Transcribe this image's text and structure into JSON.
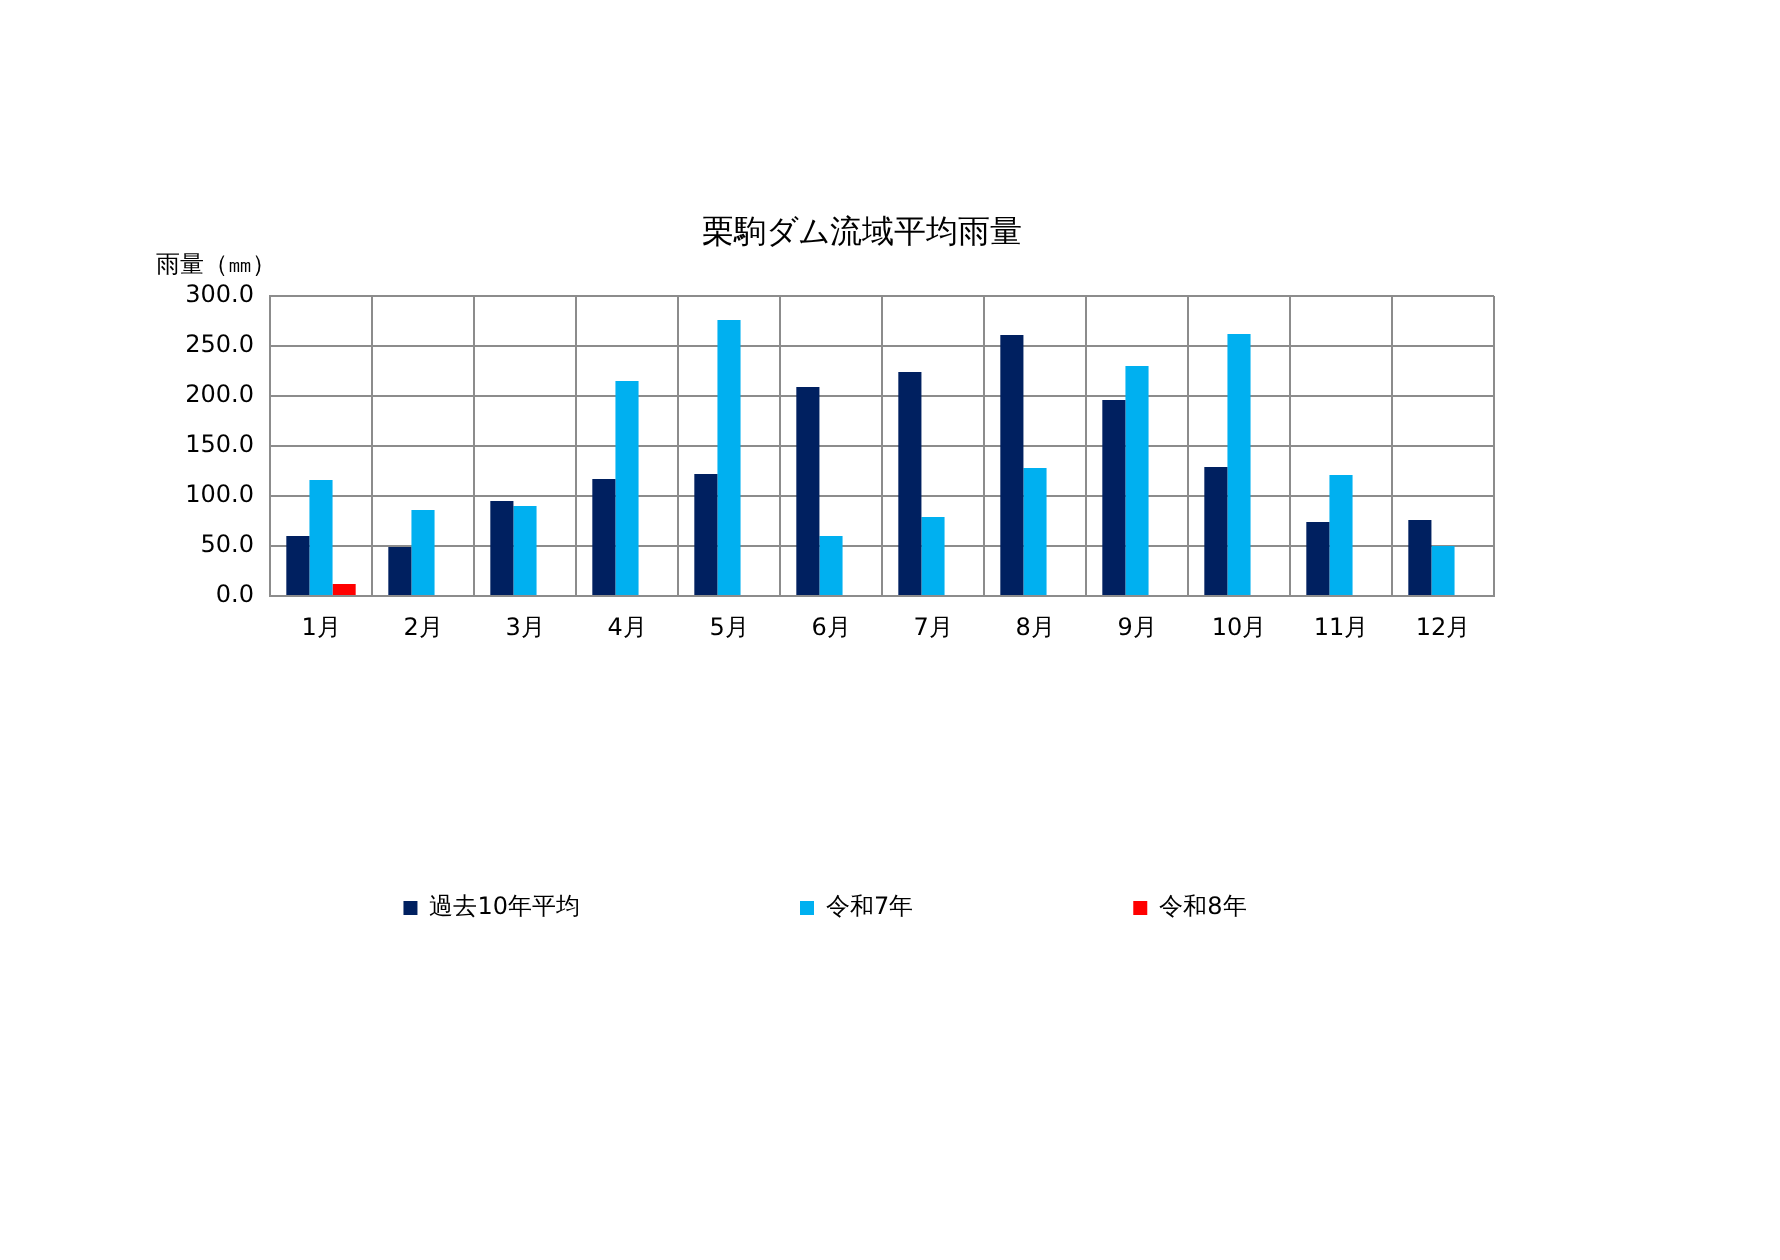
{
  "chart_data": {
    "type": "bar",
    "title": "栗駒ダム流域平均雨量",
    "ylabel": "雨量（㎜）",
    "categories": [
      "1月",
      "2月",
      "3月",
      "4月",
      "5月",
      "6月",
      "7月",
      "8月",
      "9月",
      "10月",
      "11月",
      "12月"
    ],
    "series": [
      {
        "name": "過去10年平均",
        "color": "#002060",
        "values": [
          60,
          49,
          95,
          117,
          122,
          209,
          224,
          261,
          196,
          129,
          74,
          76
        ]
      },
      {
        "name": "令和7年",
        "color": "#00b0f0",
        "values": [
          116,
          86,
          90,
          215,
          276,
          60,
          79,
          128,
          230,
          262,
          121,
          50
        ]
      },
      {
        "name": "令和8年",
        "color": "#ff0000",
        "values": [
          12,
          null,
          null,
          null,
          null,
          null,
          null,
          null,
          null,
          null,
          null,
          null
        ]
      }
    ],
    "ylim": [
      0,
      300
    ],
    "yticks": [
      {
        "value": 0,
        "label": "0.0"
      },
      {
        "value": 50,
        "label": "50.0"
      },
      {
        "value": 100,
        "label": "100.0"
      },
      {
        "value": 150,
        "label": "150.0"
      },
      {
        "value": 200,
        "label": "200.0"
      },
      {
        "value": 250,
        "label": "250.0"
      },
      {
        "value": 300,
        "label": "300.0"
      }
    ],
    "grid": true,
    "legend": "bottom"
  }
}
